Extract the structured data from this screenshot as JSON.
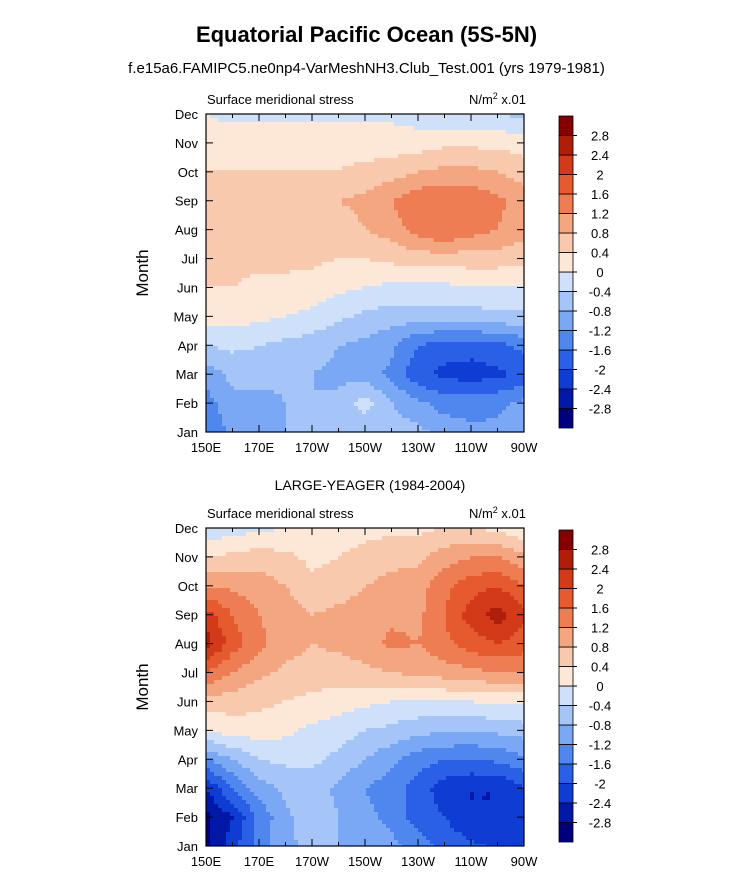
{
  "title": "Equatorial Pacific Ocean (5S-5N)",
  "subtitle": "f.e15a6.FAMIPC5.ne0np4-VarMeshNH3.Club_Test.001 (yrs 1979-1981)",
  "colors": {
    "levels": [
      "#00007f",
      "#0018a8",
      "#0f3dd4",
      "#2960e6",
      "#5087ee",
      "#7aa8f4",
      "#a5c4f7",
      "#cfe0fb",
      "#fde7d6",
      "#f9c9ad",
      "#f4a680",
      "#ee7d54",
      "#e65a30",
      "#d33a1a",
      "#b01e0a",
      "#850000"
    ],
    "frame": "#000000"
  },
  "chart_data": [
    {
      "type": "heatmap",
      "title": "",
      "left_label": "Surface meridional stress",
      "right_label_prefix": "N/m",
      "right_label_sup": "2",
      "right_label_suffix": " x.01",
      "xlabel": "",
      "ylabel": "Month",
      "xticklabels": [
        "150E",
        "170E",
        "170W",
        "150W",
        "130W",
        "110W",
        "90W"
      ],
      "longitudes": [
        150,
        160,
        170,
        180,
        190,
        200,
        210,
        220,
        230,
        240,
        250,
        260,
        270
      ],
      "months": [
        "Jan",
        "Feb",
        "Mar",
        "Apr",
        "May",
        "Jun",
        "Jul",
        "Aug",
        "Sep",
        "Oct",
        "Nov",
        "Dec"
      ],
      "colorbar_levels": [
        -2.8,
        -2.4,
        -2,
        -1.6,
        -1.2,
        -0.8,
        -0.4,
        0,
        0.4,
        0.8,
        1.2,
        1.6,
        2,
        2.4,
        2.8
      ],
      "colorbar_labels": [
        "-2.8",
        "-2.4",
        "-2",
        "-1.6",
        "-1.2",
        "-0.8",
        "-0.4",
        "0",
        "0.4",
        "0.8",
        "1.2",
        "1.6",
        "2",
        "2.4",
        "2.8"
      ],
      "values": [
        [
          -1.5,
          -1.1,
          -0.9,
          -0.8,
          -0.8,
          -0.8,
          -0.8,
          -0.6,
          -0.7,
          -0.9,
          -1.1,
          -1.1,
          -1.0
        ],
        [
          -1.4,
          -0.9,
          -1.0,
          -0.8,
          -0.8,
          -0.7,
          -0.2,
          -0.8,
          -1.1,
          -1.4,
          -1.4,
          -1.3,
          -1.1
        ],
        [
          -1.0,
          -0.7,
          -0.6,
          -0.7,
          -0.8,
          -0.9,
          -1.0,
          -1.3,
          -1.9,
          -2.1,
          -2.2,
          -2.1,
          -1.9
        ],
        [
          -0.4,
          -0.3,
          -0.4,
          -0.5,
          -0.6,
          -0.8,
          -0.9,
          -1.1,
          -1.6,
          -1.8,
          -1.8,
          -1.7,
          -1.5
        ],
        [
          0.2,
          0.2,
          0.1,
          0.0,
          -0.1,
          -0.3,
          -0.5,
          -0.6,
          -0.6,
          -0.6,
          -0.6,
          -0.5,
          -0.5
        ],
        [
          0.4,
          0.4,
          0.3,
          0.3,
          0.2,
          0.1,
          0.0,
          -0.1,
          -0.1,
          -0.1,
          0.0,
          0.0,
          0.0
        ],
        [
          0.6,
          0.5,
          0.5,
          0.5,
          0.5,
          0.4,
          0.4,
          0.5,
          0.6,
          0.6,
          0.6,
          0.6,
          0.5
        ],
        [
          0.7,
          0.6,
          0.6,
          0.7,
          0.6,
          0.6,
          0.8,
          1.0,
          1.4,
          1.6,
          1.4,
          1.2,
          1.0
        ],
        [
          0.6,
          0.6,
          0.7,
          0.7,
          0.7,
          0.8,
          0.9,
          1.2,
          1.5,
          1.5,
          1.5,
          1.3,
          1.0
        ],
        [
          0.4,
          0.4,
          0.4,
          0.4,
          0.4,
          0.4,
          0.5,
          0.6,
          0.8,
          0.9,
          0.9,
          0.8,
          0.6
        ],
        [
          0.2,
          0.2,
          0.3,
          0.3,
          0.3,
          0.3,
          0.2,
          0.2,
          0.2,
          0.3,
          0.3,
          0.3,
          0.2
        ],
        [
          0.0,
          -0.1,
          -0.1,
          -0.1,
          -0.1,
          -0.1,
          -0.1,
          -0.1,
          -0.2,
          -0.3,
          -0.3,
          -0.4,
          -0.5
        ]
      ]
    },
    {
      "type": "heatmap",
      "title": "LARGE-YEAGER (1984-2004)",
      "left_label": "Surface meridional stress",
      "right_label_prefix": "N/m",
      "right_label_sup": "2",
      "right_label_suffix": " x.01",
      "xlabel": "",
      "ylabel": "Month",
      "xticklabels": [
        "150E",
        "170E",
        "170W",
        "150W",
        "130W",
        "110W",
        "90W"
      ],
      "longitudes": [
        150,
        160,
        170,
        180,
        190,
        200,
        210,
        220,
        230,
        240,
        250,
        260,
        270
      ],
      "months": [
        "Jan",
        "Feb",
        "Mar",
        "Apr",
        "May",
        "Jun",
        "Jul",
        "Aug",
        "Sep",
        "Oct",
        "Nov",
        "Dec"
      ],
      "colorbar_levels": [
        -2.8,
        -2.4,
        -2,
        -1.6,
        -1.2,
        -0.8,
        -0.4,
        0,
        0.4,
        0.8,
        1.2,
        1.6,
        2,
        2.4,
        2.8
      ],
      "colorbar_labels": [
        "-2.8",
        "-2.4",
        "-2",
        "-1.6",
        "-1.2",
        "-0.8",
        "-0.4",
        "0",
        "0.4",
        "0.8",
        "1.2",
        "1.6",
        "2",
        "2.4",
        "2.8"
      ],
      "values": [
        [
          -2.9,
          -2.2,
          -1.4,
          -0.9,
          -0.7,
          -0.8,
          -0.9,
          -1.1,
          -1.4,
          -1.7,
          -1.9,
          -2.1,
          -2.0
        ],
        [
          -2.9,
          -2.4,
          -1.5,
          -0.9,
          -0.5,
          -0.8,
          -1.1,
          -1.3,
          -1.8,
          -2.0,
          -2.4,
          -2.4,
          -2.1
        ],
        [
          -2.4,
          -1.6,
          -1.0,
          -0.7,
          -0.6,
          -0.9,
          -1.2,
          -1.4,
          -1.8,
          -2.2,
          -2.4,
          -2.4,
          -2.0
        ],
        [
          -1.2,
          -0.8,
          -0.4,
          -0.3,
          -0.3,
          -0.5,
          -0.8,
          -1.1,
          -1.4,
          -1.6,
          -1.6,
          -1.5,
          -1.3
        ],
        [
          0.0,
          0.2,
          0.2,
          0.1,
          -0.1,
          -0.2,
          -0.4,
          -0.5,
          -0.7,
          -0.7,
          -0.8,
          -0.7,
          -0.6
        ],
        [
          0.6,
          0.6,
          0.5,
          0.4,
          0.3,
          0.2,
          0.1,
          0.0,
          0.0,
          0.0,
          0.0,
          0.1,
          0.1
        ],
        [
          1.6,
          1.2,
          0.9,
          0.7,
          0.6,
          0.6,
          0.7,
          0.8,
          0.9,
          1.0,
          1.1,
          1.2,
          1.2
        ],
        [
          2.6,
          1.8,
          1.3,
          1.0,
          0.8,
          0.9,
          1.0,
          1.3,
          1.2,
          1.5,
          1.8,
          2.0,
          1.8
        ],
        [
          2.2,
          1.6,
          1.2,
          1.0,
          0.8,
          0.9,
          1.0,
          1.1,
          1.1,
          1.6,
          2.2,
          2.6,
          2.1
        ],
        [
          1.2,
          1.1,
          1.0,
          0.8,
          0.5,
          0.6,
          0.8,
          0.9,
          1.0,
          1.5,
          1.8,
          2.0,
          1.6
        ],
        [
          0.4,
          0.5,
          0.6,
          0.5,
          0.3,
          0.4,
          0.6,
          0.7,
          0.7,
          1.0,
          1.2,
          1.2,
          0.9
        ],
        [
          -0.3,
          -0.2,
          -0.1,
          0.0,
          0.0,
          0.1,
          0.2,
          0.3,
          0.3,
          0.4,
          0.4,
          0.3,
          0.0
        ]
      ]
    }
  ]
}
